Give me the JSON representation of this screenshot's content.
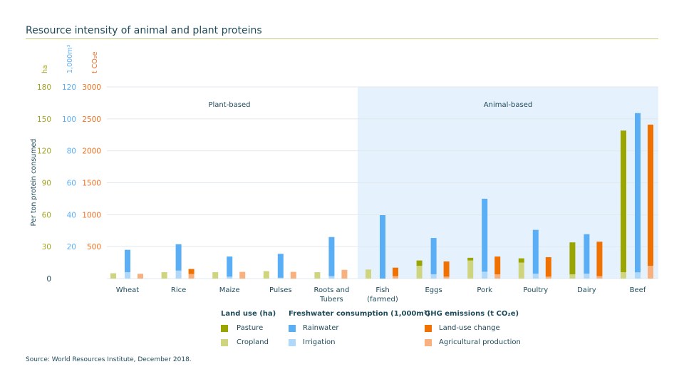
{
  "title": "Resource intensity of animal and plant proteins",
  "source": "Source: World Resources Institute, December 2018.",
  "chart_data": {
    "type": "bar",
    "title": "Resource intensity of animal and plant proteins",
    "ylabel": "Per ton protein consumed",
    "axes": [
      {
        "unit": "ha",
        "ticks": [
          "0",
          "30",
          "60",
          "90",
          "120",
          "150",
          "180"
        ],
        "ylim": [
          0,
          180
        ],
        "color": "#a3a520"
      },
      {
        "unit": "1,000m³",
        "ticks": [
          "",
          "20",
          "40",
          "60",
          "80",
          "100",
          "120"
        ],
        "ylim": [
          0,
          120
        ],
        "color": "#5aaef5"
      },
      {
        "unit": "t CO₂e",
        "ticks": [
          "",
          "500",
          "1000",
          "1500",
          "2000",
          "2500",
          "3000"
        ],
        "ylim": [
          0,
          3000
        ],
        "color": "#f07020"
      }
    ],
    "groups": [
      {
        "label": "Plant-based"
      },
      {
        "label": "Animal-based"
      }
    ],
    "categories": [
      "Wheat",
      "Rice",
      "Maize",
      "Pulses",
      "Roots and Tubers",
      "Fish (farmed)",
      "Eggs",
      "Pork",
      "Poultry",
      "Dairy",
      "Beef"
    ],
    "category_lines": [
      [
        "Wheat"
      ],
      [
        "Rice"
      ],
      [
        "Maize"
      ],
      [
        "Pulses"
      ],
      [
        "Roots and",
        "Tubers"
      ],
      [
        "Fish",
        "(farmed)"
      ],
      [
        "Eggs"
      ],
      [
        "Pork"
      ],
      [
        "Poultry"
      ],
      [
        "Dairy"
      ],
      [
        "Beef"
      ]
    ],
    "grid": true,
    "series": [
      {
        "name": "Cropland",
        "group": "land",
        "values": [
          5,
          6,
          6,
          7,
          6,
          8.5,
          12,
          17,
          15,
          4,
          6
        ],
        "color": "#cfd47f"
      },
      {
        "name": "Pasture",
        "group": "land",
        "values": [
          0,
          0,
          0,
          0,
          0,
          0,
          5,
          2.5,
          4,
          30,
          133
        ],
        "color": "#9aa500"
      },
      {
        "name": "Irrigation",
        "group": "water",
        "values": [
          4,
          5,
          1.2,
          0.5,
          1.5,
          0,
          2.7,
          4.3,
          3.1,
          3.1,
          3.9
        ],
        "color": "#b0d8fa"
      },
      {
        "name": "Rainwater",
        "group": "water",
        "values": [
          14,
          16.5,
          12.6,
          15,
          24.5,
          39.7,
          22.7,
          45.7,
          27.4,
          24.7,
          99.7
        ],
        "color": "#5aaef5"
      },
      {
        "name": "Agricultural production",
        "group": "ghg",
        "values": [
          75,
          70,
          105,
          105,
          137,
          37,
          30,
          67,
          30,
          37,
          200
        ],
        "color": "#f8b07e"
      },
      {
        "name": "Land-use change",
        "group": "ghg",
        "values": [
          0,
          80,
          0,
          0,
          0,
          134,
          238,
          278,
          305,
          540,
          2210
        ],
        "color": "#f07000"
      }
    ]
  },
  "legend": {
    "land": {
      "heading": "Land use (ha)",
      "items": [
        "Pasture",
        "Cropland"
      ]
    },
    "water": {
      "heading": "Freshwater consumption (1,000m³)",
      "items": [
        "Rainwater",
        "Irrigation"
      ]
    },
    "ghg": {
      "heading": "GHG emissions (t CO₂e)",
      "items": [
        "Land-use change",
        "Agricultural production"
      ]
    }
  },
  "colors": {
    "pasture": "#9aa500",
    "cropland": "#cfd47f",
    "rainwater": "#5aaef5",
    "irrigation": "#b0d8fa",
    "landuse": "#f07000",
    "agri": "#f8b07e",
    "animal_bg": "#e5f1fc"
  }
}
